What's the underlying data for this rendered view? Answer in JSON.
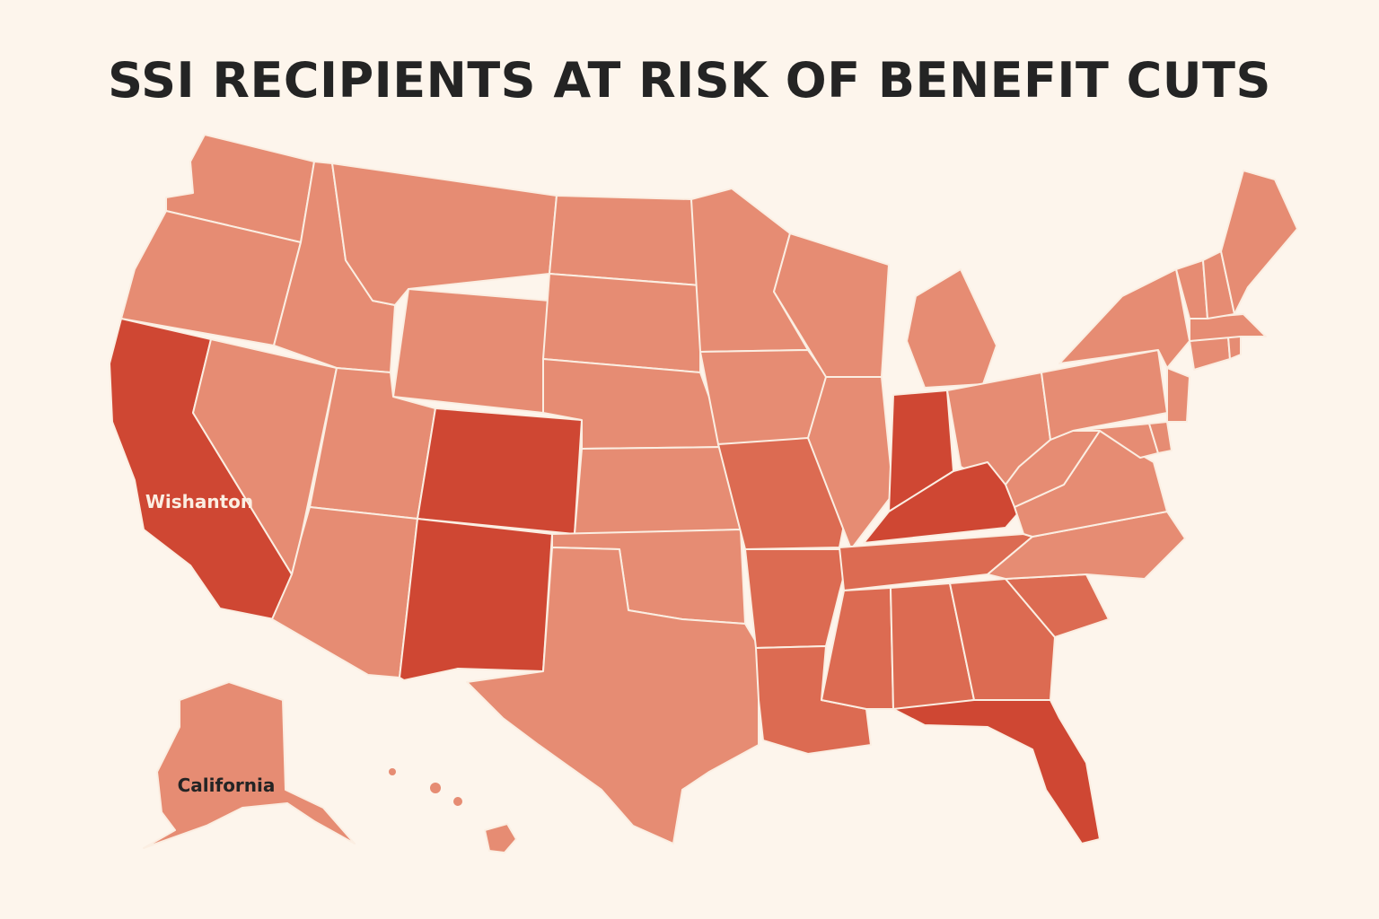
{
  "title": "SSI RECIPIENTS AT RISK OF BENEFIT CUTS",
  "labels": {
    "west_coast": "Wishanton",
    "alaska": "California"
  },
  "colors": {
    "background": "#fdf5ec",
    "low": "#e68c73",
    "medium": "#dc6b52",
    "high": "#cf4733",
    "border": "#fbeee2",
    "title": "#242424",
    "label_light": "#fbeee2",
    "label_dark": "#242424"
  },
  "states": [
    {
      "id": "WA",
      "level": "low"
    },
    {
      "id": "OR",
      "level": "low"
    },
    {
      "id": "CA",
      "level": "high"
    },
    {
      "id": "NV",
      "level": "low"
    },
    {
      "id": "ID",
      "level": "low"
    },
    {
      "id": "MT",
      "level": "low"
    },
    {
      "id": "WY",
      "level": "low"
    },
    {
      "id": "UT",
      "level": "low"
    },
    {
      "id": "AZ",
      "level": "low"
    },
    {
      "id": "CO",
      "level": "high"
    },
    {
      "id": "NM",
      "level": "high"
    },
    {
      "id": "ND",
      "level": "low"
    },
    {
      "id": "SD",
      "level": "low"
    },
    {
      "id": "NE",
      "level": "low"
    },
    {
      "id": "KS",
      "level": "low"
    },
    {
      "id": "OK",
      "level": "low"
    },
    {
      "id": "TX",
      "level": "low"
    },
    {
      "id": "MN",
      "level": "low"
    },
    {
      "id": "IA",
      "level": "low"
    },
    {
      "id": "MO",
      "level": "medium"
    },
    {
      "id": "AR",
      "level": "medium"
    },
    {
      "id": "LA",
      "level": "medium"
    },
    {
      "id": "WI",
      "level": "low"
    },
    {
      "id": "IL",
      "level": "low"
    },
    {
      "id": "MI",
      "level": "low"
    },
    {
      "id": "IN",
      "level": "high"
    },
    {
      "id": "OH",
      "level": "low"
    },
    {
      "id": "KY",
      "level": "high"
    },
    {
      "id": "TN",
      "level": "medium"
    },
    {
      "id": "MS",
      "level": "medium"
    },
    {
      "id": "AL",
      "level": "medium"
    },
    {
      "id": "GA",
      "level": "medium"
    },
    {
      "id": "FL",
      "level": "high"
    },
    {
      "id": "SC",
      "level": "medium"
    },
    {
      "id": "NC",
      "level": "low"
    },
    {
      "id": "VA",
      "level": "low"
    },
    {
      "id": "WV",
      "level": "low"
    },
    {
      "id": "MD",
      "level": "low"
    },
    {
      "id": "DE",
      "level": "low"
    },
    {
      "id": "PA",
      "level": "low"
    },
    {
      "id": "NJ",
      "level": "low"
    },
    {
      "id": "NY",
      "level": "low"
    },
    {
      "id": "CT",
      "level": "low"
    },
    {
      "id": "RI",
      "level": "low"
    },
    {
      "id": "MA",
      "level": "low"
    },
    {
      "id": "VT",
      "level": "low"
    },
    {
      "id": "NH",
      "level": "low"
    },
    {
      "id": "ME",
      "level": "low"
    },
    {
      "id": "AK",
      "level": "low"
    },
    {
      "id": "HI",
      "level": "low"
    }
  ]
}
